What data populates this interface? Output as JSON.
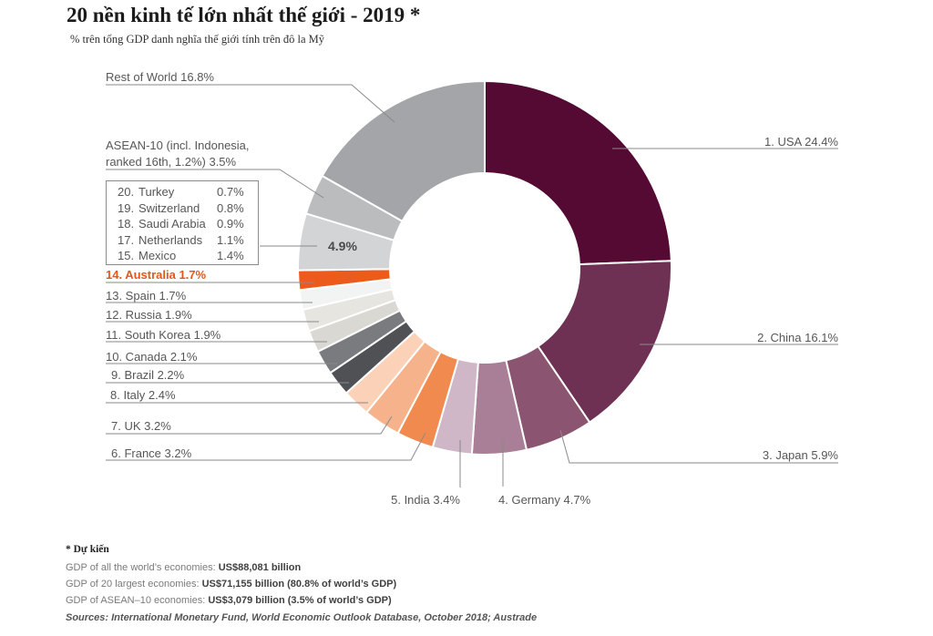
{
  "chart_data": {
    "type": "pie",
    "variant": "donut",
    "title": "20 nền kinh tế lớn nhất thế giới - 2019 *",
    "subtitle": "% trên tổng GDP danh nghĩa thế giới tính trên đô la Mỹ",
    "unit": "% of world GDP",
    "highlight": "Australia",
    "slices": [
      {
        "key": "usa",
        "name": "USA",
        "rank": 1,
        "value": 24.4,
        "label": "1. USA 24.4%",
        "color": "#540a33"
      },
      {
        "key": "china",
        "name": "China",
        "rank": 2,
        "value": 16.1,
        "label": "2. China 16.1%",
        "color": "#6e3153"
      },
      {
        "key": "japan",
        "name": "Japan",
        "rank": 3,
        "value": 5.9,
        "label": "3. Japan 5.9%",
        "color": "#8b5571"
      },
      {
        "key": "germany",
        "name": "Germany",
        "rank": 4,
        "value": 4.7,
        "label": "4. Germany 4.7%",
        "color": "#a87f97"
      },
      {
        "key": "india",
        "name": "India",
        "rank": 5,
        "value": 3.4,
        "label": "5. India 3.4%",
        "color": "#cfb7c7"
      },
      {
        "key": "france",
        "name": "France",
        "rank": 6,
        "value": 3.2,
        "label": "6. France 3.2%",
        "color": "#f08a4f"
      },
      {
        "key": "uk",
        "name": "UK",
        "rank": 7,
        "value": 3.2,
        "label": "7. UK 3.2%",
        "color": "#f6b38b"
      },
      {
        "key": "italy",
        "name": "Italy",
        "rank": 8,
        "value": 2.4,
        "label": "8. Italy 2.4%",
        "color": "#fbd2b8"
      },
      {
        "key": "brazil",
        "name": "Brazil",
        "rank": 9,
        "value": 2.2,
        "label": "9. Brazil 2.2%",
        "color": "#4f5154"
      },
      {
        "key": "canada",
        "name": "Canada",
        "rank": 10,
        "value": 2.1,
        "label": "10. Canada 2.1%",
        "color": "#797b7e"
      },
      {
        "key": "south-korea",
        "name": "South Korea",
        "rank": 11,
        "value": 1.9,
        "label": "11. South Korea 1.9%",
        "color": "#d9d8d3"
      },
      {
        "key": "russia",
        "name": "Russia",
        "rank": 12,
        "value": 1.9,
        "label": "12. Russia 1.9%",
        "color": "#e6e5e0"
      },
      {
        "key": "spain",
        "name": "Spain",
        "rank": 13,
        "value": 1.7,
        "label": "13. Spain 1.7%",
        "color": "#f2f4f4"
      },
      {
        "key": "australia",
        "name": "Australia",
        "rank": 14,
        "value": 1.7,
        "label": "14. Australia 1.7%",
        "color": "#ec5a1c"
      },
      {
        "key": "ranks-15-20",
        "name": "Mexico, Netherlands, Saudi Arabia, Switzerland, Turkey",
        "value": 4.9,
        "label": "4.9%",
        "color": "#d3d4d6"
      },
      {
        "key": "asean-10",
        "name": "ASEAN-10",
        "value": 3.5,
        "label": "ASEAN-10 (incl. Indonesia, ranked 16th, 1.2%) 3.5%",
        "label_lines": [
          "ASEAN-10 (incl. Indonesia,",
          "ranked 16th, 1.2%) 3.5%"
        ],
        "color": "#bbbcbe"
      },
      {
        "key": "rest-of-world",
        "name": "Rest of World",
        "value": 16.8,
        "label": "Rest of World 16.8%",
        "color": "#a3a5a8"
      }
    ],
    "breakdown": [
      {
        "rank": "20.",
        "name": "Turkey",
        "value": "0.7%"
      },
      {
        "rank": "19.",
        "name": "Switzerland",
        "value": "0.8%"
      },
      {
        "rank": "18.",
        "name": "Saudi Arabia",
        "value": "0.9%"
      },
      {
        "rank": "17.",
        "name": "Netherlands",
        "value": "1.1%"
      },
      {
        "rank": "15.",
        "name": "Mexico",
        "value": "1.4%"
      }
    ]
  },
  "footer": {
    "note": "* Dự kiến",
    "stats": [
      {
        "prefix": "GDP of all the world’s economies: ",
        "value": "US$88,081 billion"
      },
      {
        "prefix": "GDP of 20 largest economies: ",
        "value": "US$71,155 billion (80.8% of world’s GDP)"
      },
      {
        "prefix": "GDP of ASEAN–10 economies: ",
        "value": "US$3,079 billion (3.5% of world’s GDP)"
      }
    ],
    "sources": "Sources: International Monetary Fund, World Economic Outlook Database, October 2018; Austrade"
  }
}
